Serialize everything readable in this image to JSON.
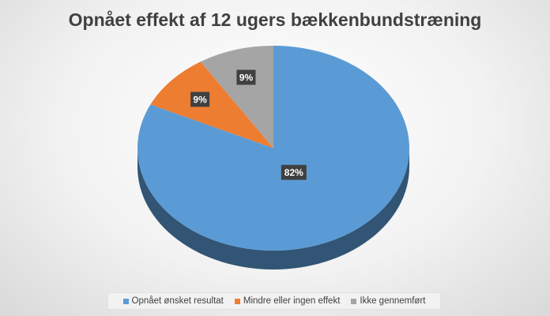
{
  "chart_data": {
    "type": "pie",
    "title": "Opnået effekt af 12 ugers bækkenbundstræning",
    "categories": [
      "Opnået ønsket resultat",
      "Mindre eller ingen effekt",
      "Ikke gennemført"
    ],
    "values": [
      82,
      9,
      9
    ],
    "data_labels": [
      "82%",
      "9%",
      "9%"
    ],
    "colors": [
      "#5b9bd5",
      "#ed7d31",
      "#a5a5a5"
    ],
    "legend_position": "bottom",
    "style": "3d"
  }
}
